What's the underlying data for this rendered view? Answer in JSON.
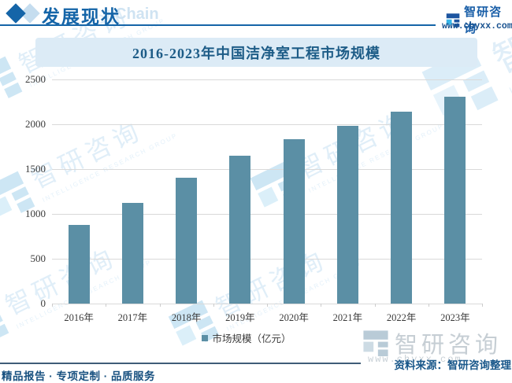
{
  "header": {
    "section_title": "发展现状",
    "background_word": "Chain",
    "brand": {
      "name": "智研咨询",
      "url": "www.chyxx.com"
    }
  },
  "banner": {
    "title": "2016-2023年中国洁净室工程市场规模"
  },
  "chart_data": {
    "type": "bar",
    "title": "2016-2023年中国洁净室工程市场规模",
    "categories": [
      "2016年",
      "2017年",
      "2018年",
      "2019年",
      "2020年",
      "2021年",
      "2022年",
      "2023年"
    ],
    "series": [
      {
        "name": "市场规模（亿元）",
        "values": [
          880,
          1120,
          1405,
          1650,
          1830,
          1985,
          2140,
          2310
        ]
      }
    ],
    "unit": "亿元",
    "ylim": [
      0,
      2500
    ],
    "yticks": [
      0,
      500,
      1000,
      1500,
      2000,
      2500
    ],
    "grid": true,
    "legend_position": "bottom",
    "bar_color": "#5b8fa5"
  },
  "footer": {
    "source": "资料来源：智研咨询整理",
    "slogan": "精品报告 · 专项定制 · 品质服务",
    "brand": {
      "name": "智研咨询",
      "url": "www.chyxx.com"
    }
  },
  "watermark": {
    "brand": "智研咨询",
    "subtext": "INTELLIGENCE RESEARCH GROUP"
  },
  "colors": {
    "brand_blue": "#1565a8",
    "title_blue": "#1d5c87",
    "banner_bg": "#dcebf6",
    "bar": "#5b8fa5",
    "grid": "#d9d9d9",
    "axis_text": "#3a3a3a",
    "light_blue_word": "#cfe3f2",
    "watermark_blue": "#c7e1f4",
    "footer_line": "#3f5d77",
    "footer_logo_gray": "#c6ced4"
  }
}
